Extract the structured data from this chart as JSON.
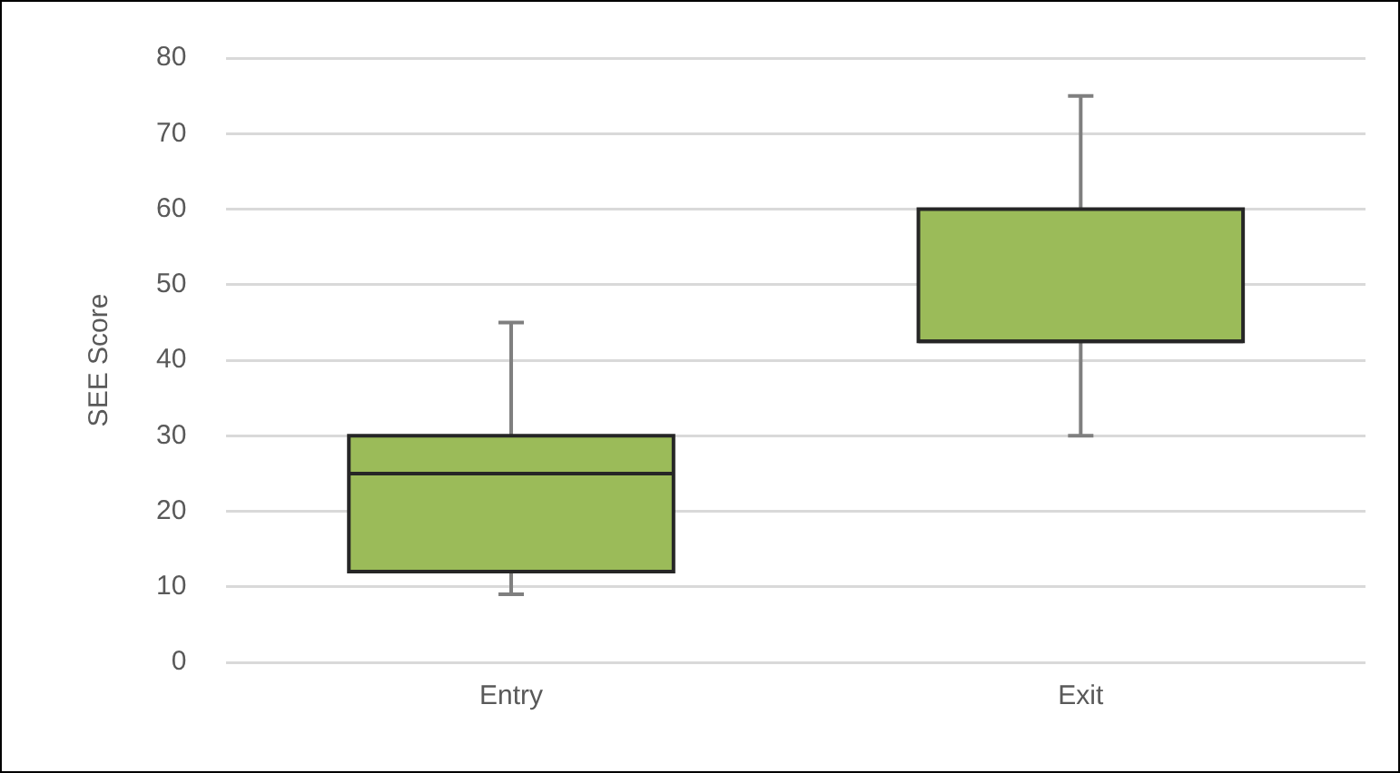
{
  "chart_data": {
    "type": "box",
    "ylabel": "SEE Score",
    "categories": [
      "Entry",
      "Exit"
    ],
    "color": "#9bbb59",
    "boxes": [
      {
        "low": 9,
        "q1": 12,
        "median": 25,
        "q3": 30,
        "high": 45
      },
      {
        "low": 30,
        "q1": 42.5,
        "median": 42.5,
        "q3": 60,
        "high": 75
      }
    ],
    "ylim": [
      0,
      80
    ],
    "yticks": [
      0,
      10,
      20,
      30,
      40,
      50,
      60,
      70,
      80
    ],
    "grid": "y",
    "legend": false
  }
}
